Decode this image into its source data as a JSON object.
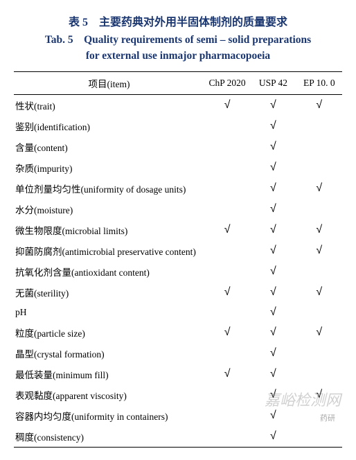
{
  "caption": {
    "cn": "表 5　主要药典对外用半固体制剂的质量要求",
    "en_line1": "Tab. 5　Quality requirements of semi – solid preparations",
    "en_line2": "for external use inmajor pharmacopoeia"
  },
  "header": {
    "item": "项目(item)",
    "col1": "ChP 2020",
    "col2": "USP 42",
    "col3": "EP 10. 0"
  },
  "checkmark": "√",
  "rows": [
    {
      "label": "性状(trait)",
      "c1": true,
      "c2": true,
      "c3": true
    },
    {
      "label": "鉴别(identification)",
      "c1": false,
      "c2": true,
      "c3": false
    },
    {
      "label": "含量(content)",
      "c1": false,
      "c2": true,
      "c3": false
    },
    {
      "label": "杂质(impurity)",
      "c1": false,
      "c2": true,
      "c3": false
    },
    {
      "label": "单位剂量均匀性(uniformity of dosage units)",
      "c1": false,
      "c2": true,
      "c3": true
    },
    {
      "label": "水分(moisture)",
      "c1": false,
      "c2": true,
      "c3": false
    },
    {
      "label": "微生物限度(microbial limits)",
      "c1": true,
      "c2": true,
      "c3": true
    },
    {
      "label": "抑菌防腐剂(antimicrobial preservative content)",
      "c1": false,
      "c2": true,
      "c3": true
    },
    {
      "label": "抗氧化剂含量(antioxidant content)",
      "c1": false,
      "c2": true,
      "c3": false
    },
    {
      "label": "无菌(sterility)",
      "c1": true,
      "c2": true,
      "c3": true
    },
    {
      "label": "pH",
      "c1": false,
      "c2": true,
      "c3": false
    },
    {
      "label": "粒度(particle size)",
      "c1": true,
      "c2": true,
      "c3": true
    },
    {
      "label": "晶型(crystal formation)",
      "c1": false,
      "c2": true,
      "c3": false
    },
    {
      "label": "最低装量(minimum fill)",
      "c1": true,
      "c2": true,
      "c3": false
    },
    {
      "label": "表观黏度(apparent viscosity)",
      "c1": false,
      "c2": true,
      "c3": true
    },
    {
      "label": "容器内均匀度(uniformity in containers)",
      "c1": false,
      "c2": true,
      "c3": false
    },
    {
      "label": "稠度(consistency)",
      "c1": false,
      "c2": true,
      "c3": false
    }
  ],
  "watermark_main": "嘉峪检测网",
  "watermark_sub": "药研"
}
